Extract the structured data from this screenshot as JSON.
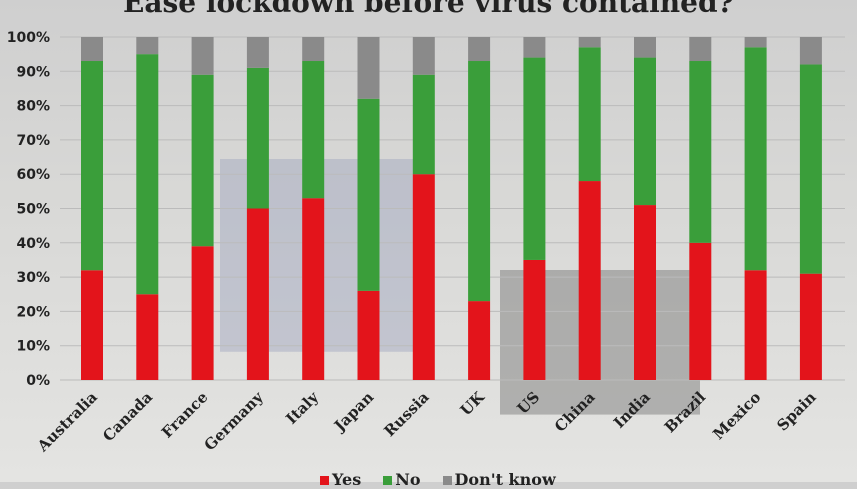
{
  "chart_data": {
    "type": "bar",
    "stacked": true,
    "title": "Ease lockdown before virus contained?",
    "xlabel": "",
    "ylabel": "",
    "ylim": [
      0,
      100
    ],
    "yticks": [
      "0%",
      "10%",
      "20%",
      "30%",
      "40%",
      "50%",
      "60%",
      "70%",
      "80%",
      "90%",
      "100%"
    ],
    "grid": true,
    "legend_placement": "bottom",
    "categories": [
      "Australia",
      "Canada",
      "France",
      "Germany",
      "Italy",
      "Japan",
      "Russia",
      "UK",
      "US",
      "China",
      "India",
      "Brazil",
      "Mexico",
      "Spain"
    ],
    "series": [
      {
        "name": "Yes",
        "color": "#e3141b",
        "values": [
          32,
          25,
          39,
          50,
          53,
          26,
          60,
          23,
          35,
          58,
          51,
          40,
          32,
          31
        ]
      },
      {
        "name": "No",
        "color": "#3a9e3a",
        "values": [
          61,
          70,
          50,
          41,
          40,
          56,
          29,
          70,
          59,
          39,
          43,
          53,
          65,
          61
        ]
      },
      {
        "name": "Don't know",
        "color": "#8a8a8a",
        "values": [
          7,
          5,
          11,
          9,
          7,
          18,
          11,
          7,
          6,
          3,
          6,
          7,
          3,
          8
        ]
      }
    ]
  }
}
